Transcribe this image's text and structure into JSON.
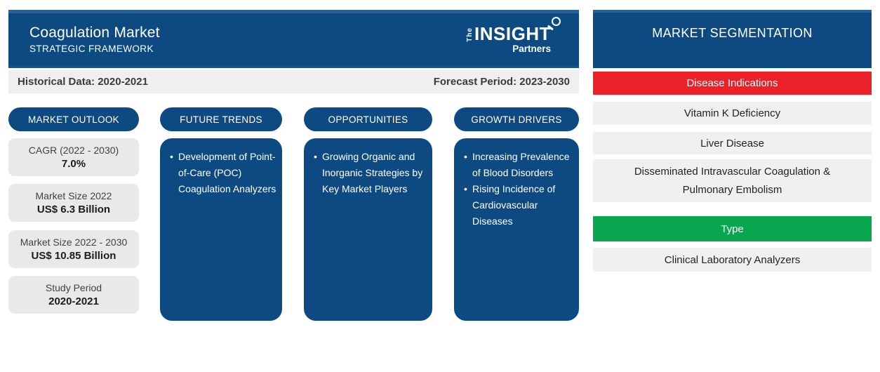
{
  "header": {
    "title": "Coagulation Market",
    "subtitle": "STRATEGIC FRAMEWORK",
    "logo": {
      "the": "The",
      "insight": "INSIGHT",
      "partners": "Partners"
    }
  },
  "period_bar": {
    "historical": "Historical Data: 2020-2021",
    "forecast": "Forecast Period: 2023-2030"
  },
  "columns": {
    "market_outlook": {
      "title": "MARKET OUTLOOK",
      "stats": [
        {
          "label": "CAGR (2022 - 2030)",
          "value": "7.0%"
        },
        {
          "label": "Market Size 2022",
          "value": "US$ 6.3 Billion"
        },
        {
          "label": "Market Size 2022 - 2030",
          "value": "US$ 10.85 Billion"
        },
        {
          "label": "Study Period",
          "value": "2020-2021"
        }
      ]
    },
    "future_trends": {
      "title": "FUTURE TRENDS",
      "bullets": [
        "Development of Point-of-Care (POC) Coagulation Analyzers"
      ]
    },
    "opportunities": {
      "title": "OPPORTUNITIES",
      "bullets": [
        "Growing Organic and Inorganic Strategies by Key Market Players"
      ]
    },
    "growth_drivers": {
      "title": "GROWTH DRIVERS",
      "bullets": [
        "Increasing Prevalence of Blood Disorders",
        "Rising Incidence of Cardiovascular Diseases"
      ]
    }
  },
  "segmentation": {
    "title": "MARKET SEGMENTATION",
    "groups": [
      {
        "name": "Disease Indications",
        "color": "#EC2028",
        "items": [
          "Vitamin K Deficiency",
          "Liver Disease",
          "Disseminated Intravascular Coagulation & Pulmonary Embolism"
        ]
      },
      {
        "name": "Type",
        "color": "#09A650",
        "items": [
          "Clinical Laboratory Analyzers"
        ]
      }
    ]
  },
  "colors": {
    "primary_blue": "#0E4A82",
    "header_highlight": "#2B5F98",
    "red": "#EC2028",
    "green": "#09A650",
    "bar_gray": "#EFEFEF",
    "stat_box_gray": "#E9E9E9"
  }
}
